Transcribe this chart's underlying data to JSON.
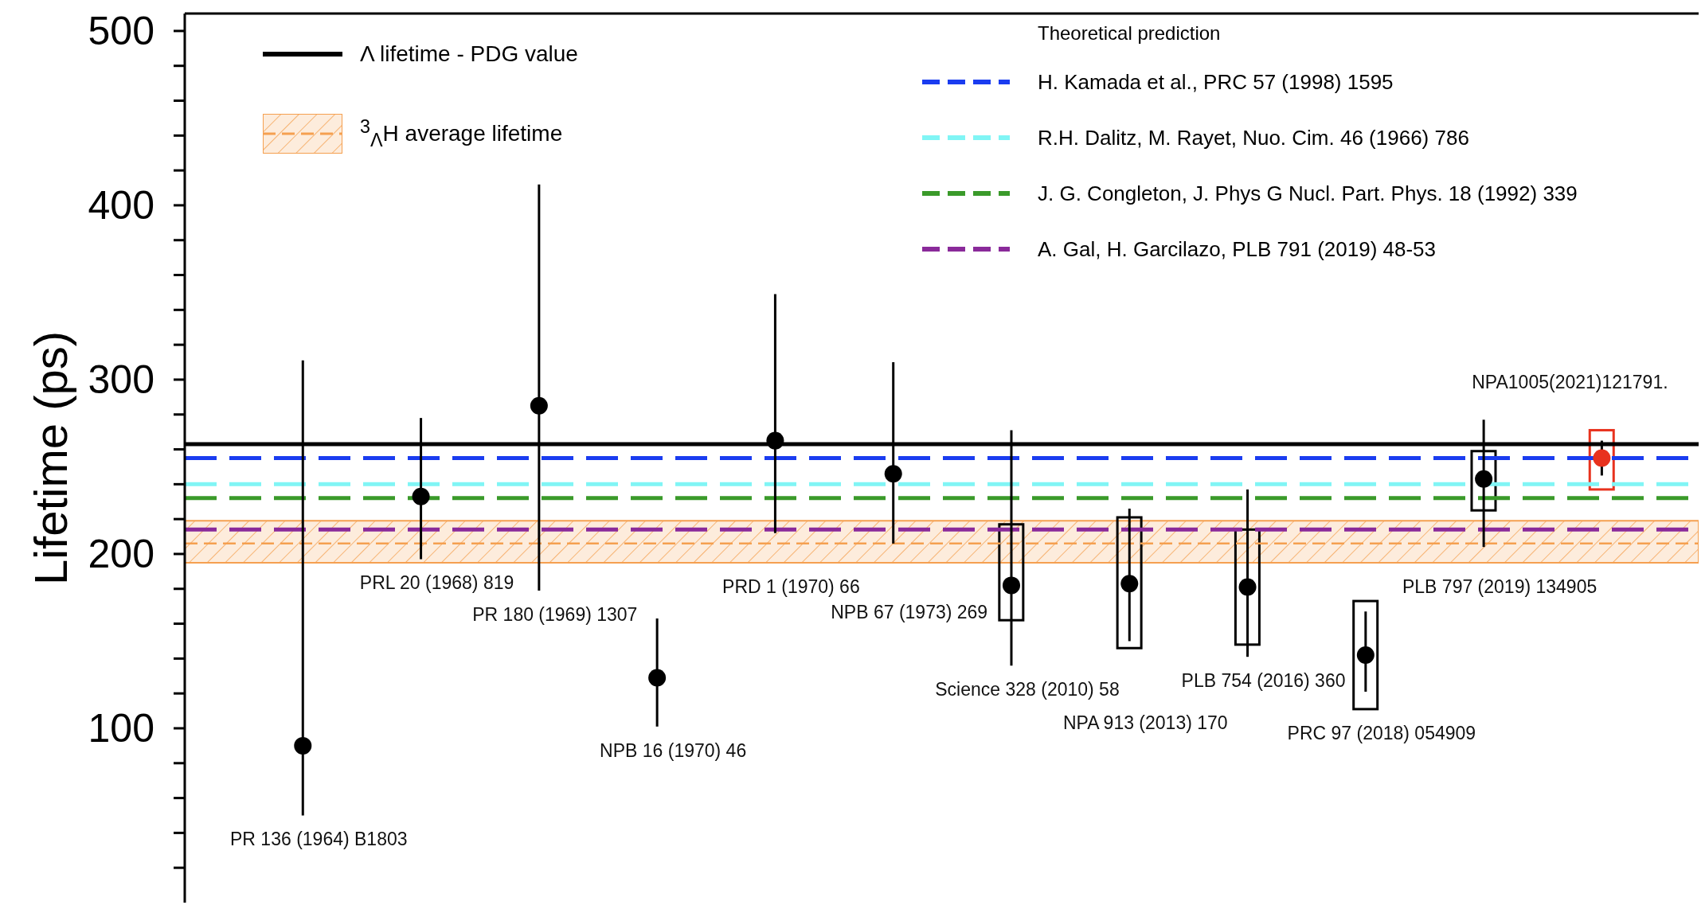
{
  "chart_data": {
    "type": "scatter",
    "ylabel": "Lifetime (ps)",
    "legend_title": "Theoretical prediction",
    "categories": [
      null,
      null,
      null,
      null,
      null,
      null,
      null,
      null,
      null,
      null,
      null,
      null
    ],
    "ylim": [
      0,
      510
    ],
    "yticks": [
      {
        "value": 20,
        "label": null
      },
      {
        "value": 40,
        "label": null
      },
      {
        "value": 60,
        "label": null
      },
      {
        "value": 80,
        "label": null
      },
      100,
      {
        "value": 120,
        "label": null
      },
      {
        "value": 140,
        "label": null
      },
      {
        "value": 160,
        "label": null
      },
      {
        "value": 180,
        "label": null
      },
      200,
      {
        "value": 220,
        "label": null
      },
      {
        "value": 240,
        "label": null
      },
      {
        "value": 260,
        "label": null
      },
      {
        "value": 280,
        "label": null
      },
      300,
      {
        "value": 320,
        "label": null
      },
      {
        "value": 340,
        "label": null
      },
      {
        "value": 360,
        "label": null
      },
      {
        "value": 380,
        "label": null
      },
      400,
      {
        "value": 420,
        "label": null
      },
      {
        "value": 440,
        "label": null
      },
      {
        "value": 460,
        "label": null
      },
      {
        "value": 480,
        "label": null
      },
      500
    ],
    "tick_labels": "y",
    "marker": "circle",
    "legend": "top",
    "series": [
      {
        "color": "#000000",
        "colors": [
          "#000000",
          "#000000",
          "#000000",
          "#000000",
          "#000000",
          "#000000",
          "#000000",
          "#000000",
          "#000000",
          "#000000",
          "#000000",
          "#e8321e"
        ],
        "values": [
          90,
          233,
          285,
          129,
          265,
          246,
          182,
          183,
          181,
          142,
          243,
          255
        ],
        "errors": [
          [
            50,
            311
          ],
          [
            197,
            278
          ],
          [
            179,
            412
          ],
          [
            101,
            163
          ],
          [
            212,
            349
          ],
          [
            206,
            310
          ],
          [
            136,
            271
          ],
          [
            150,
            226
          ],
          [
            141,
            237
          ],
          [
            121,
            167
          ],
          [
            204,
            277
          ],
          [
            245,
            265
          ]
        ]
      },
      {
        "type": "bar",
        "colors": [
          null,
          null,
          null,
          null,
          null,
          null,
          "#000000",
          "#000000",
          "#000000",
          "#000000",
          "#000000",
          "#e8321e"
        ],
        "base": [
          null,
          null,
          null,
          null,
          null,
          null,
          162,
          146,
          148,
          111,
          225,
          237
        ],
        "values": [
          null,
          null,
          null,
          null,
          null,
          null,
          55,
          75,
          66,
          62,
          34,
          34
        ]
      }
    ],
    "ref_lines": [
      {
        "axis": "y",
        "value": 263,
        "label": "Λ lifetime - PDG value",
        "color": "#000000",
        "line_style": "solid"
      },
      {
        "axis": "y",
        "value": 255,
        "label": "H. Kamada et al., PRC 57 (1998) 1595",
        "color": "#1a3cf0",
        "line_style": "dashed"
      },
      {
        "axis": "y",
        "value": 240,
        "label": "R.H. Dalitz, M. Rayet, Nuo. Cim. 46 (1966) 786",
        "color": "#80f5f5",
        "line_style": "dashed"
      },
      {
        "axis": "y",
        "value": 232,
        "label": "J. G. Congleton, J. Phys G Nucl. Part. Phys. 18 (1992) 339",
        "color": "#3a9a2a",
        "line_style": "dashed"
      },
      {
        "axis": "y",
        "value": 214,
        "label": "A. Gal, H. Garcilazo, PLB 791 (2019) 48-53",
        "color": "#8a2a9a",
        "line_style": "dashed"
      },
      {
        "axis": "y",
        "value": 206,
        "color": "#f5a050",
        "line_style": "dashed"
      }
    ],
    "bands": [
      {
        "axis": "y",
        "from": 195,
        "to": 219,
        "label": "$^{3}$$_{Λ}$H average lifetime",
        "color": "#f5a050"
      }
    ],
    "annotations": [
      "PR 136 (1964) B1803",
      "PRL 20 (1968) 819",
      "PR 180 (1969) 1307",
      "NPB 16 (1970) 46",
      "PRD 1 (1970) 66",
      "NPB 67 (1973) 269",
      "Science 328 (2010) 58",
      "NPA 913 (2013) 170",
      "PLB 754 (2016) 360",
      "PRC 97 (2018) 054909",
      "PLB 797 (2019) 134905",
      "NPA1005(2021)121791."
    ]
  }
}
